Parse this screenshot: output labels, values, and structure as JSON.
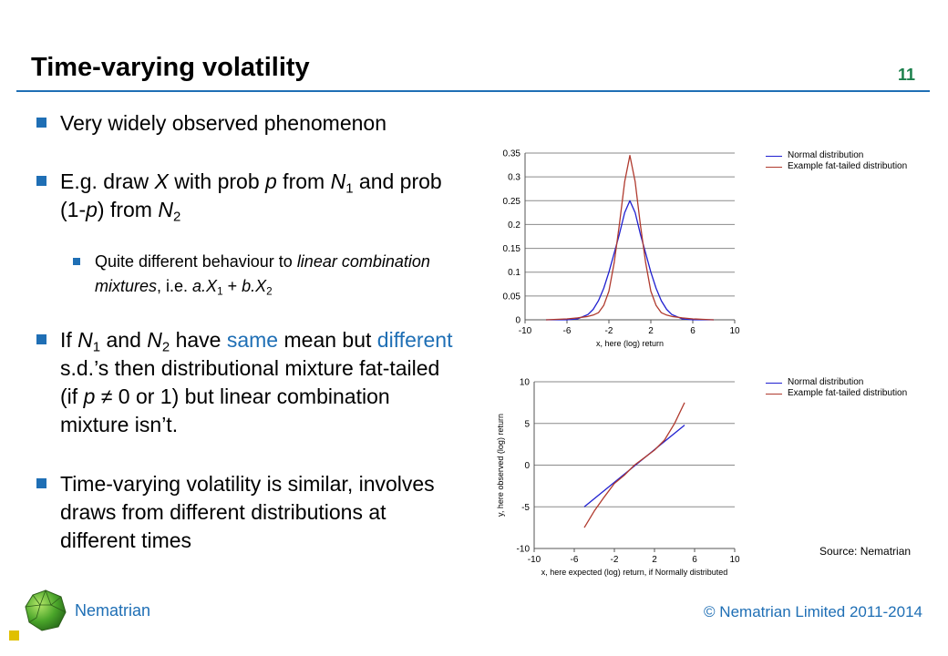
{
  "slide": {
    "title": "Time-varying volatility",
    "number": "11"
  },
  "bullets": {
    "b1": "Very widely observed phenomenon",
    "b2": {
      "p1": "E.g. draw ",
      "X": "X",
      "p2": " with prob ",
      "p": "p",
      "p3": " from ",
      "N1": "N",
      "N1sub": "1",
      "p4": " and prob (1-",
      "p5": "p",
      "p6": ") from ",
      "N2": "N",
      "N2sub": "2"
    },
    "b3": {
      "p1": "Quite different behaviour to ",
      "it1": "linear combination mixtures",
      "p2": ", i.e. ",
      "aX": "a.X",
      "aXsub": "1",
      "plus": " + ",
      "bX": "b.X",
      "bXsub": "2"
    },
    "b4": {
      "p1": "If ",
      "N1": "N",
      "N1sub": "1",
      "p2": " and ",
      "N2": "N",
      "N2sub": "2",
      "p3": " have ",
      "same": "same",
      "p4": " mean but ",
      "different": "different",
      "p5": " s.d.’s then distributional mixture fat-tailed (if ",
      "p": "p",
      "p6": " ≠ 0 or 1) but linear combination mixture isn’t."
    },
    "b5": "Time-varying volatility is similar, involves draws from different distributions at different times"
  },
  "chart_data": [
    {
      "type": "line",
      "title": "",
      "xlabel": "x, here (log) return",
      "ylabel": "",
      "xlim": [
        -10,
        10
      ],
      "ylim": [
        0,
        0.35
      ],
      "xticks": [
        -10,
        -6,
        -2,
        2,
        6,
        10
      ],
      "yticks": [
        0,
        0.05,
        0.1,
        0.15,
        0.2,
        0.25,
        0.3,
        0.35
      ],
      "grid": "horizontal",
      "legend_position": "top-right",
      "x": [
        -8,
        -7,
        -6,
        -5,
        -4,
        -3.5,
        -3,
        -2.5,
        -2,
        -1.5,
        -1,
        -0.5,
        0,
        0.5,
        1,
        1.5,
        2,
        2.5,
        3,
        3.5,
        4,
        5,
        6,
        7,
        8
      ],
      "series": [
        {
          "name": "Normal distribution",
          "color": "#2020d0",
          "values": [
            0.0,
            0.0,
            0.0,
            0.002,
            0.011,
            0.022,
            0.04,
            0.066,
            0.1,
            0.14,
            0.18,
            0.225,
            0.25,
            0.225,
            0.18,
            0.14,
            0.1,
            0.066,
            0.04,
            0.022,
            0.011,
            0.002,
            0.0,
            0.0,
            0.0
          ]
        },
        {
          "name": "Example fat-tailed distribution",
          "color": "#b03a2e",
          "values": [
            0.0,
            0.001,
            0.002,
            0.004,
            0.007,
            0.01,
            0.015,
            0.03,
            0.06,
            0.12,
            0.2,
            0.29,
            0.345,
            0.29,
            0.2,
            0.12,
            0.06,
            0.03,
            0.015,
            0.01,
            0.007,
            0.004,
            0.002,
            0.001,
            0.0
          ]
        }
      ]
    },
    {
      "type": "line",
      "title": "",
      "xlabel": "x, here expected (log) return, if Normally distributed",
      "ylabel": "y, here observed (log) return",
      "xlim": [
        -10,
        10
      ],
      "ylim": [
        -10,
        10
      ],
      "xticks": [
        -10,
        -6,
        -2,
        2,
        6,
        10
      ],
      "yticks": [
        -10,
        -5,
        0,
        5,
        10
      ],
      "grid": "horizontal",
      "legend_position": "top-right",
      "series": [
        {
          "name": "Normal distribution",
          "color": "#2020d0",
          "x": [
            -5,
            5
          ],
          "values": [
            -5,
            4.8
          ]
        },
        {
          "name": "Example fat-tailed distribution",
          "color": "#b03a2e",
          "x": [
            -5,
            -4,
            -3,
            -2,
            -1,
            0,
            1,
            2,
            3,
            4,
            5
          ],
          "values": [
            -7.5,
            -5.5,
            -3.8,
            -2.2,
            -1.2,
            0,
            0.9,
            1.8,
            3.0,
            5.0,
            7.5
          ]
        }
      ]
    }
  ],
  "source": "Source: Nematrian",
  "footer": {
    "brand": "Nematrian",
    "copyright": "© Nematrian Limited 2011-2014"
  },
  "colors": {
    "accent": "#1f6fb5",
    "slide_number": "#1a7f4b",
    "corner_square": "#e0c000"
  }
}
